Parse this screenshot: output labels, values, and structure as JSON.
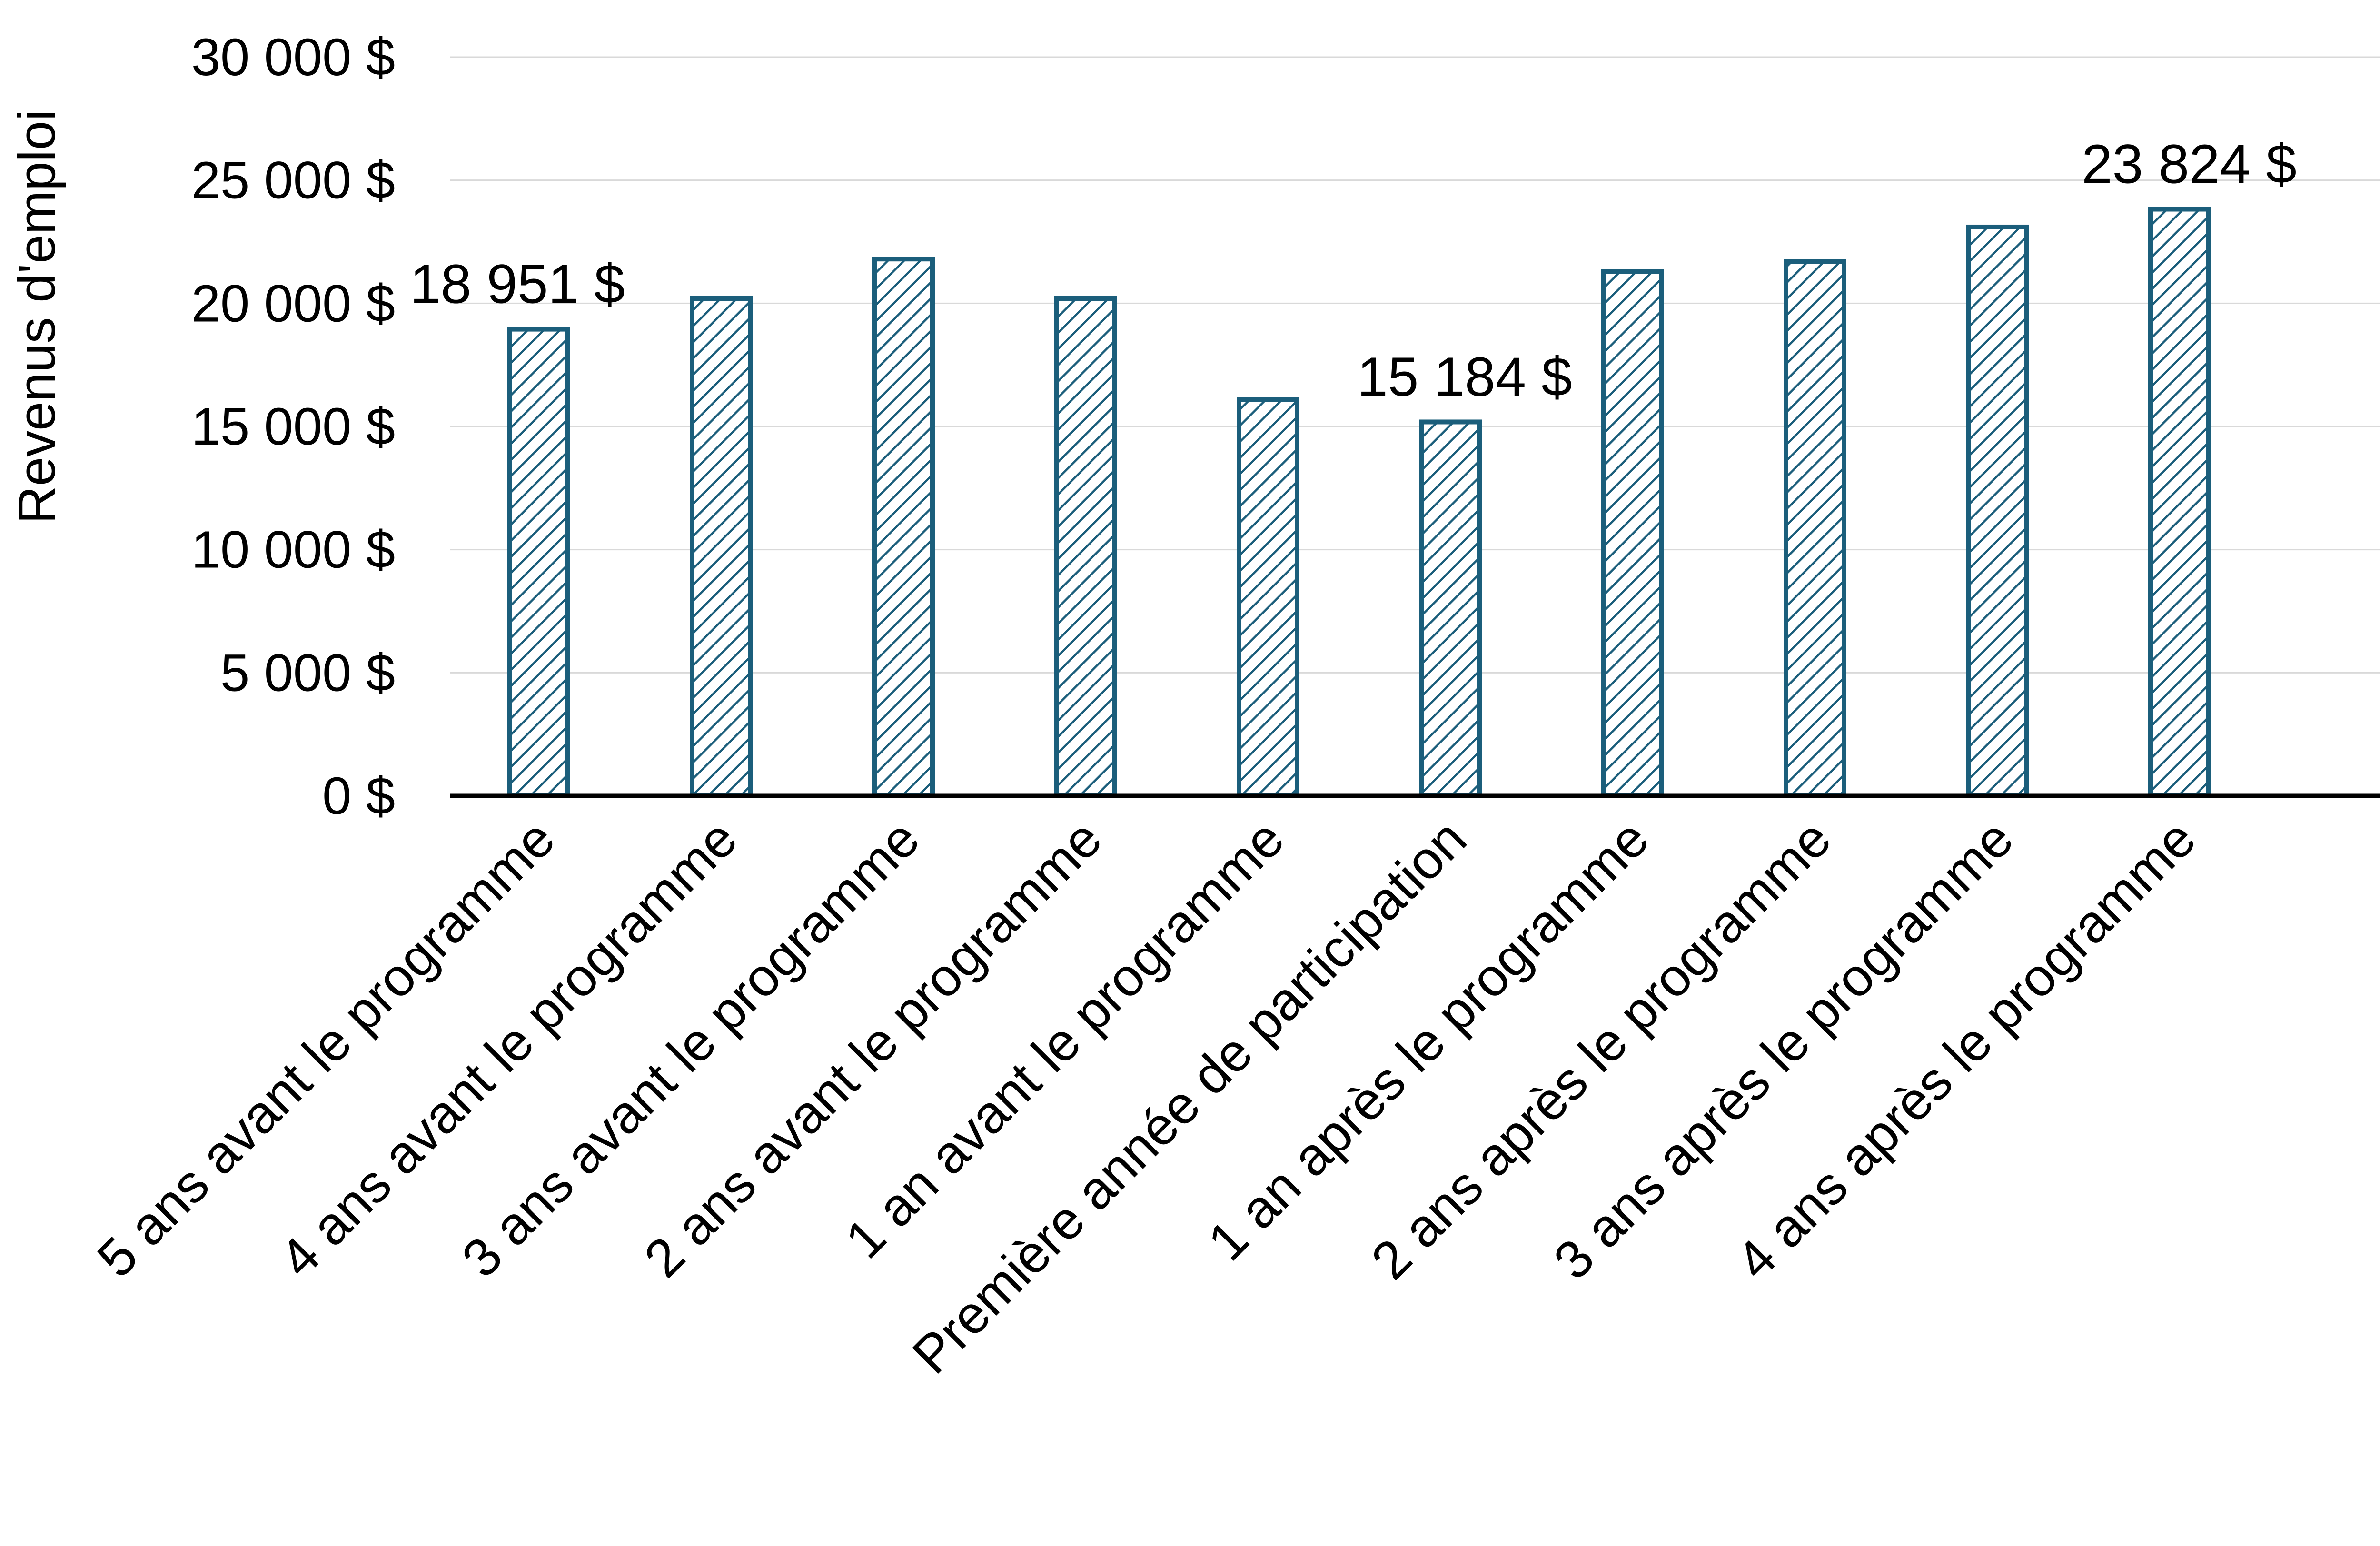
{
  "chart_data": {
    "type": "bar",
    "ylabel": "Revenus d'emploi",
    "xlabel": "",
    "ylim": [
      0,
      30000
    ],
    "yticks": [
      0,
      5000,
      10000,
      15000,
      20000,
      25000,
      30000
    ],
    "ytick_labels": [
      "0 $",
      "5 000 $",
      "10 000 $",
      "15 000 $",
      "20 000 $",
      "25 000 $",
      "30 000 $"
    ],
    "grid": true,
    "legend": "none",
    "bar_fill": "hatched",
    "bar_color": "#1b5e7b",
    "categories": [
      "5 ans avant le programme",
      "4 ans avant le programme",
      "3 ans avant le programme",
      "2 ans avant le programme",
      "1 an avant le programme",
      "Première année de participation",
      "1 an après le programme",
      "2 ans après le programme",
      "3 ans après le programme",
      "4 ans après le programme"
    ],
    "values": [
      18951,
      20200,
      21800,
      20200,
      16100,
      15184,
      21300,
      21700,
      23100,
      23824
    ],
    "data_labels": [
      {
        "index": 0,
        "text": "18 951 $"
      },
      {
        "index": 5,
        "text": "15 184 $"
      },
      {
        "index": 9,
        "text": "23 824 $"
      }
    ]
  }
}
